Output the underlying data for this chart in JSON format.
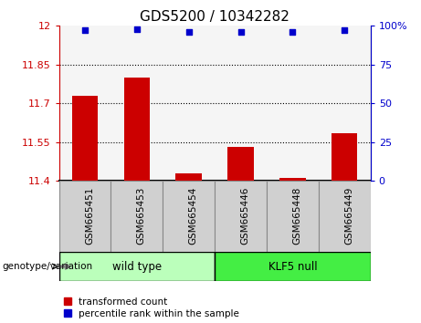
{
  "title": "GDS5200 / 10342282",
  "categories": [
    "GSM665451",
    "GSM665453",
    "GSM665454",
    "GSM665446",
    "GSM665448",
    "GSM665449"
  ],
  "bar_values": [
    11.73,
    11.8,
    11.43,
    11.53,
    11.41,
    11.585
  ],
  "dot_values": [
    97,
    98,
    96,
    96,
    96,
    97
  ],
  "ylim_left": [
    11.4,
    12.0
  ],
  "ylim_right": [
    0,
    100
  ],
  "yticks_left": [
    11.4,
    11.55,
    11.7,
    11.85,
    12.0
  ],
  "ytick_labels_left": [
    "11.4",
    "11.55",
    "11.7",
    "11.85",
    "12"
  ],
  "yticks_right": [
    0,
    25,
    50,
    75,
    100
  ],
  "ytick_labels_right": [
    "0",
    "25",
    "50",
    "75",
    "100%"
  ],
  "hlines": [
    11.55,
    11.7,
    11.85
  ],
  "bar_color": "#cc0000",
  "dot_color": "#0000cc",
  "wild_type_color": "#bbffbb",
  "klf5_null_color": "#44ee44",
  "wild_type_label": "wild type",
  "klf5_null_label": "KLF5 null",
  "genotype_label": "genotype/variation",
  "legend_bar_label": "transformed count",
  "legend_dot_label": "percentile rank within the sample",
  "n_wild": 3,
  "n_klf": 3,
  "bar_width": 0.5,
  "tick_label_color_left": "#cc0000",
  "tick_label_color_right": "#0000cc",
  "background_color": "#ffffff",
  "plot_bg_color": "#f5f5f5",
  "tick_box_color": "#d0d0d0",
  "tick_box_edge": "#888888"
}
